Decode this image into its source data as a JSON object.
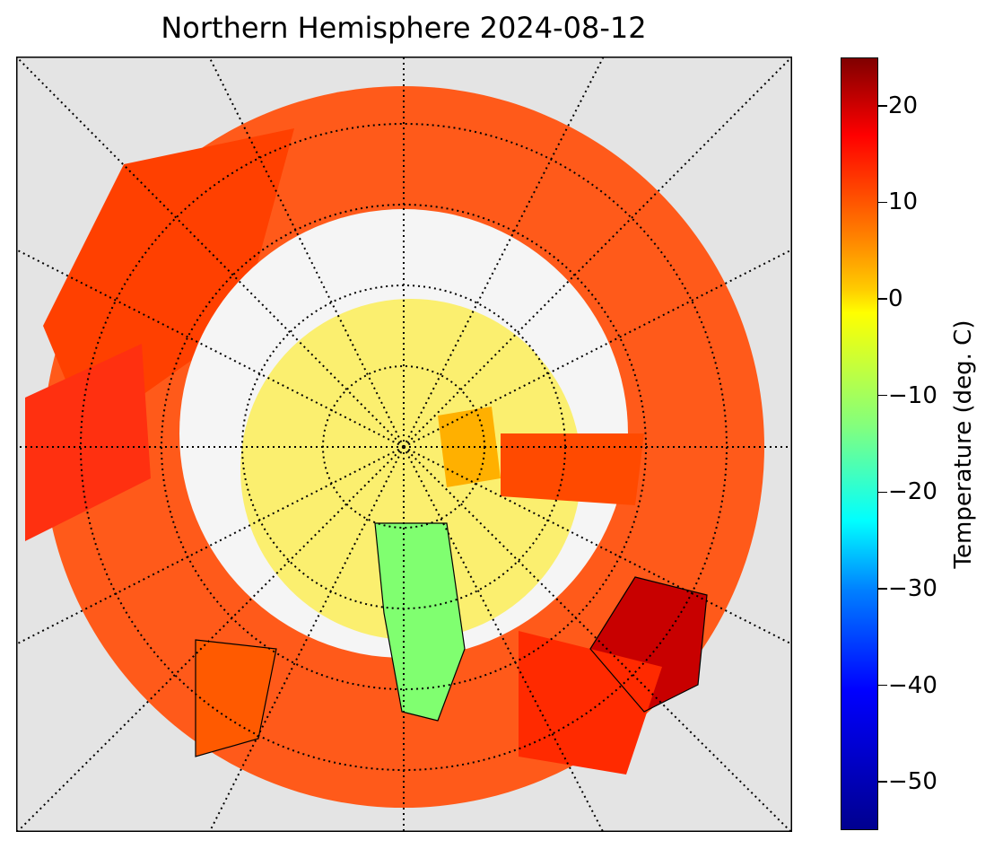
{
  "title": "Northern Hemisphere 2024-08-12",
  "colorbar": {
    "label": "Temperature (deg. C)",
    "range": [
      -55,
      25
    ],
    "ticks": [
      {
        "label": "20",
        "value": 20
      },
      {
        "label": "10",
        "value": 10
      },
      {
        "label": "0",
        "value": 0
      },
      {
        "label": "−10",
        "value": -10
      },
      {
        "label": "−20",
        "value": -20
      },
      {
        "label": "−30",
        "value": -30
      },
      {
        "label": "−40",
        "value": -40
      },
      {
        "label": "−50",
        "value": -50
      }
    ]
  },
  "map": {
    "projection": "north-polar-stereographic",
    "graticule": "dotted",
    "background_color": "#e4e4e4",
    "colormap": "jet"
  }
}
